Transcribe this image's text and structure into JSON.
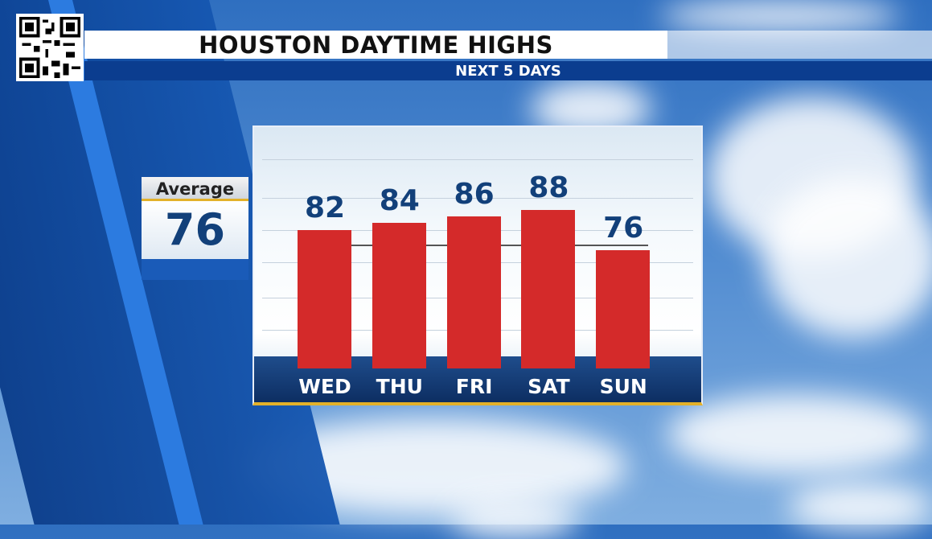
{
  "header": {
    "title": "HOUSTON DAYTIME HIGHS",
    "subtitle": "NEXT 5 DAYS"
  },
  "average": {
    "label": "Average",
    "value": "76"
  },
  "colors": {
    "bar": "#d42a2a",
    "value_text": "#12407a",
    "header_band": "#0b3d8f",
    "accent": "#e3b12a"
  },
  "icons": {
    "qr": "qr-code-icon"
  },
  "chart_data": {
    "type": "bar",
    "title": "HOUSTON DAYTIME HIGHS",
    "subtitle": "NEXT 5 DAYS",
    "categories": [
      "WED",
      "THU",
      "FRI",
      "SAT",
      "SUN"
    ],
    "values": [
      82,
      84,
      86,
      88,
      76
    ],
    "value_labels": [
      "82",
      "84",
      "86",
      "88",
      "76"
    ],
    "reference_line": {
      "label": "Average",
      "value": 76
    },
    "grid": true,
    "legend": "none"
  }
}
